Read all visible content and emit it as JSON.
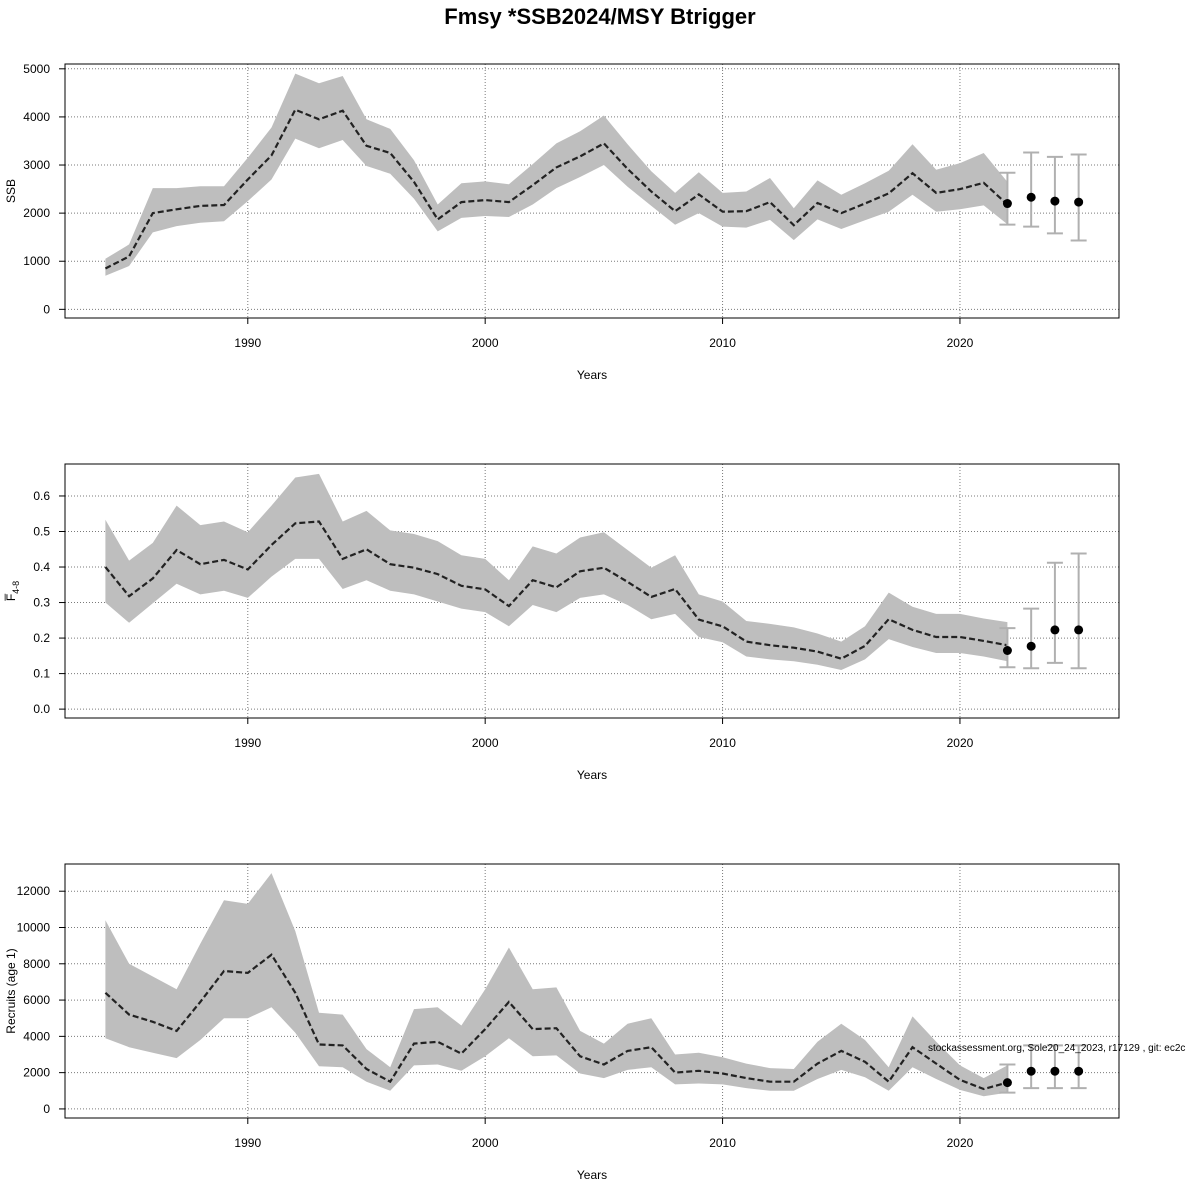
{
  "title": "Fmsy *SSB2024/MSY Btrigger",
  "footnote": "stockassessment.org, Sole20_24_2023, r17129 , git: ec2c",
  "colors": {
    "band": "#bebebe",
    "line": "#222222",
    "errorbar": "#b0b0b0",
    "point": "#000000",
    "grid": "#7a7a7a"
  },
  "chart_data": [
    {
      "type": "line",
      "xlabel": "Years",
      "ylabel": "SSB",
      "xlim": [
        1982.3,
        2026.7
      ],
      "ylim": [
        -180,
        5100
      ],
      "xticks": [
        1990,
        2000,
        2010,
        2020
      ],
      "yticks": [
        0,
        1000,
        2000,
        3000,
        4000,
        5000
      ],
      "grid": true,
      "x": [
        1984,
        1985,
        1986,
        1987,
        1988,
        1989,
        1990,
        1991,
        1992,
        1993,
        1994,
        1995,
        1996,
        1997,
        1998,
        1999,
        2000,
        2001,
        2002,
        2003,
        2004,
        2005,
        2006,
        2007,
        2008,
        2009,
        2010,
        2011,
        2012,
        2013,
        2014,
        2015,
        2016,
        2017,
        2018,
        2019,
        2020,
        2021,
        2022
      ],
      "estimate": [
        850,
        1100,
        2000,
        2080,
        2150,
        2170,
        2700,
        3200,
        4150,
        3950,
        4130,
        3400,
        3250,
        2650,
        1870,
        2230,
        2270,
        2230,
        2580,
        2950,
        3180,
        3450,
        2920,
        2450,
        2040,
        2390,
        2030,
        2040,
        2230,
        1750,
        2210,
        2000,
        2200,
        2410,
        2830,
        2420,
        2500,
        2630,
        2180
      ],
      "lower": [
        700,
        900,
        1600,
        1730,
        1800,
        1830,
        2250,
        2700,
        3550,
        3350,
        3520,
        2980,
        2820,
        2300,
        1620,
        1900,
        1940,
        1920,
        2180,
        2520,
        2750,
        3000,
        2550,
        2150,
        1760,
        2000,
        1720,
        1700,
        1860,
        1440,
        1870,
        1670,
        1850,
        2030,
        2380,
        2030,
        2080,
        2160,
        1770
      ],
      "upper": [
        1050,
        1350,
        2520,
        2520,
        2560,
        2560,
        3150,
        3780,
        4900,
        4700,
        4850,
        3950,
        3750,
        3100,
        2180,
        2620,
        2660,
        2600,
        3020,
        3450,
        3700,
        4030,
        3430,
        2870,
        2420,
        2850,
        2420,
        2450,
        2730,
        2100,
        2680,
        2380,
        2620,
        2880,
        3430,
        2900,
        3040,
        3250,
        2650
      ],
      "forecast": [
        {
          "x": 2022,
          "y": 2200,
          "lower": 1760,
          "upper": 2840
        },
        {
          "x": 2023,
          "y": 2330,
          "lower": 1720,
          "upper": 3260
        },
        {
          "x": 2024,
          "y": 2250,
          "lower": 1580,
          "upper": 3170
        },
        {
          "x": 2025,
          "y": 2230,
          "lower": 1430,
          "upper": 3220
        }
      ]
    },
    {
      "type": "line",
      "xlabel": "Years",
      "ylabel": "F̅",
      "ylabel_sub": "4-8",
      "xlim": [
        1982.3,
        2026.7
      ],
      "ylim": [
        -0.025,
        0.69
      ],
      "xticks": [
        1990,
        2000,
        2010,
        2020
      ],
      "yticks": [
        "0.0",
        "0.1",
        "0.2",
        "0.3",
        "0.4",
        "0.5",
        "0.6"
      ],
      "grid": true,
      "x": [
        1984,
        1985,
        1986,
        1987,
        1988,
        1989,
        1990,
        1991,
        1992,
        1993,
        1994,
        1995,
        1996,
        1997,
        1998,
        1999,
        2000,
        2001,
        2002,
        2003,
        2004,
        2005,
        2006,
        2007,
        2008,
        2009,
        2010,
        2011,
        2012,
        2013,
        2014,
        2015,
        2016,
        2017,
        2018,
        2019,
        2020,
        2021,
        2022
      ],
      "estimate": [
        0.4,
        0.318,
        0.368,
        0.448,
        0.408,
        0.42,
        0.393,
        0.462,
        0.523,
        0.528,
        0.423,
        0.45,
        0.408,
        0.398,
        0.38,
        0.347,
        0.337,
        0.29,
        0.363,
        0.343,
        0.388,
        0.398,
        0.358,
        0.316,
        0.338,
        0.252,
        0.233,
        0.19,
        0.18,
        0.173,
        0.162,
        0.142,
        0.178,
        0.253,
        0.223,
        0.203,
        0.203,
        0.192,
        0.18
      ],
      "lower": [
        0.3,
        0.243,
        0.298,
        0.353,
        0.323,
        0.333,
        0.313,
        0.373,
        0.423,
        0.423,
        0.338,
        0.363,
        0.333,
        0.323,
        0.303,
        0.283,
        0.273,
        0.233,
        0.293,
        0.273,
        0.313,
        0.323,
        0.293,
        0.253,
        0.268,
        0.203,
        0.188,
        0.148,
        0.14,
        0.135,
        0.125,
        0.11,
        0.14,
        0.197,
        0.175,
        0.158,
        0.158,
        0.148,
        0.135
      ],
      "upper": [
        0.533,
        0.418,
        0.468,
        0.573,
        0.518,
        0.528,
        0.498,
        0.573,
        0.652,
        0.662,
        0.528,
        0.558,
        0.503,
        0.493,
        0.473,
        0.433,
        0.423,
        0.363,
        0.458,
        0.438,
        0.483,
        0.498,
        0.448,
        0.398,
        0.433,
        0.323,
        0.303,
        0.248,
        0.24,
        0.23,
        0.213,
        0.19,
        0.233,
        0.328,
        0.288,
        0.268,
        0.268,
        0.255,
        0.245
      ],
      "forecast": [
        {
          "x": 2022,
          "y": 0.165,
          "lower": 0.118,
          "upper": 0.228
        },
        {
          "x": 2023,
          "y": 0.177,
          "lower": 0.115,
          "upper": 0.283
        },
        {
          "x": 2024,
          "y": 0.223,
          "lower": 0.13,
          "upper": 0.412
        },
        {
          "x": 2025,
          "y": 0.223,
          "lower": 0.115,
          "upper": 0.438
        }
      ]
    },
    {
      "type": "line",
      "xlabel": "Years",
      "ylabel": "Recruits (age 1)",
      "xlim": [
        1982.3,
        2026.7
      ],
      "ylim": [
        -500,
        13500
      ],
      "xticks": [
        1990,
        2000,
        2010,
        2020
      ],
      "yticks": [
        0,
        2000,
        4000,
        6000,
        8000,
        10000,
        12000
      ],
      "grid": true,
      "x": [
        1984,
        1985,
        1986,
        1987,
        1988,
        1989,
        1990,
        1991,
        1992,
        1993,
        1994,
        1995,
        1996,
        1997,
        1998,
        1999,
        2000,
        2001,
        2002,
        2003,
        2004,
        2005,
        2006,
        2007,
        2008,
        2009,
        2010,
        2011,
        2012,
        2013,
        2014,
        2015,
        2016,
        2017,
        2018,
        2019,
        2020,
        2021,
        2022
      ],
      "estimate": [
        6400,
        5200,
        4800,
        4300,
        5900,
        7600,
        7500,
        8500,
        6400,
        3550,
        3500,
        2200,
        1500,
        3600,
        3700,
        3050,
        4400,
        5900,
        4400,
        4450,
        2900,
        2450,
        3200,
        3400,
        2000,
        2100,
        1950,
        1700,
        1500,
        1500,
        2500,
        3200,
        2600,
        1500,
        3400,
        2500,
        1600,
        1100,
        1450
      ],
      "lower": [
        3900,
        3400,
        3100,
        2800,
        3800,
        5000,
        5000,
        5600,
        4200,
        2350,
        2300,
        1500,
        1000,
        2400,
        2450,
        2100,
        2900,
        3900,
        2900,
        2950,
        1950,
        1700,
        2150,
        2300,
        1350,
        1400,
        1350,
        1150,
        1000,
        1000,
        1650,
        2150,
        1750,
        1000,
        2300,
        1650,
        1050,
        700,
        900
      ],
      "upper": [
        10400,
        8000,
        7300,
        6600,
        9100,
        11500,
        11300,
        13000,
        9800,
        5300,
        5200,
        3300,
        2300,
        5500,
        5600,
        4600,
        6600,
        8900,
        6600,
        6700,
        4300,
        3600,
        4700,
        5000,
        3000,
        3100,
        2850,
        2500,
        2250,
        2200,
        3700,
        4700,
        3800,
        2300,
        5100,
        3700,
        2400,
        1700,
        2400
      ],
      "forecast": [
        {
          "x": 2022,
          "y": 1450,
          "lower": 900,
          "upper": 2450
        },
        {
          "x": 2023,
          "y": 2080,
          "lower": 1150,
          "upper": 3500
        },
        {
          "x": 2024,
          "y": 2080,
          "lower": 1150,
          "upper": 3500
        },
        {
          "x": 2025,
          "y": 2080,
          "lower": 1150,
          "upper": 3500
        }
      ]
    }
  ]
}
